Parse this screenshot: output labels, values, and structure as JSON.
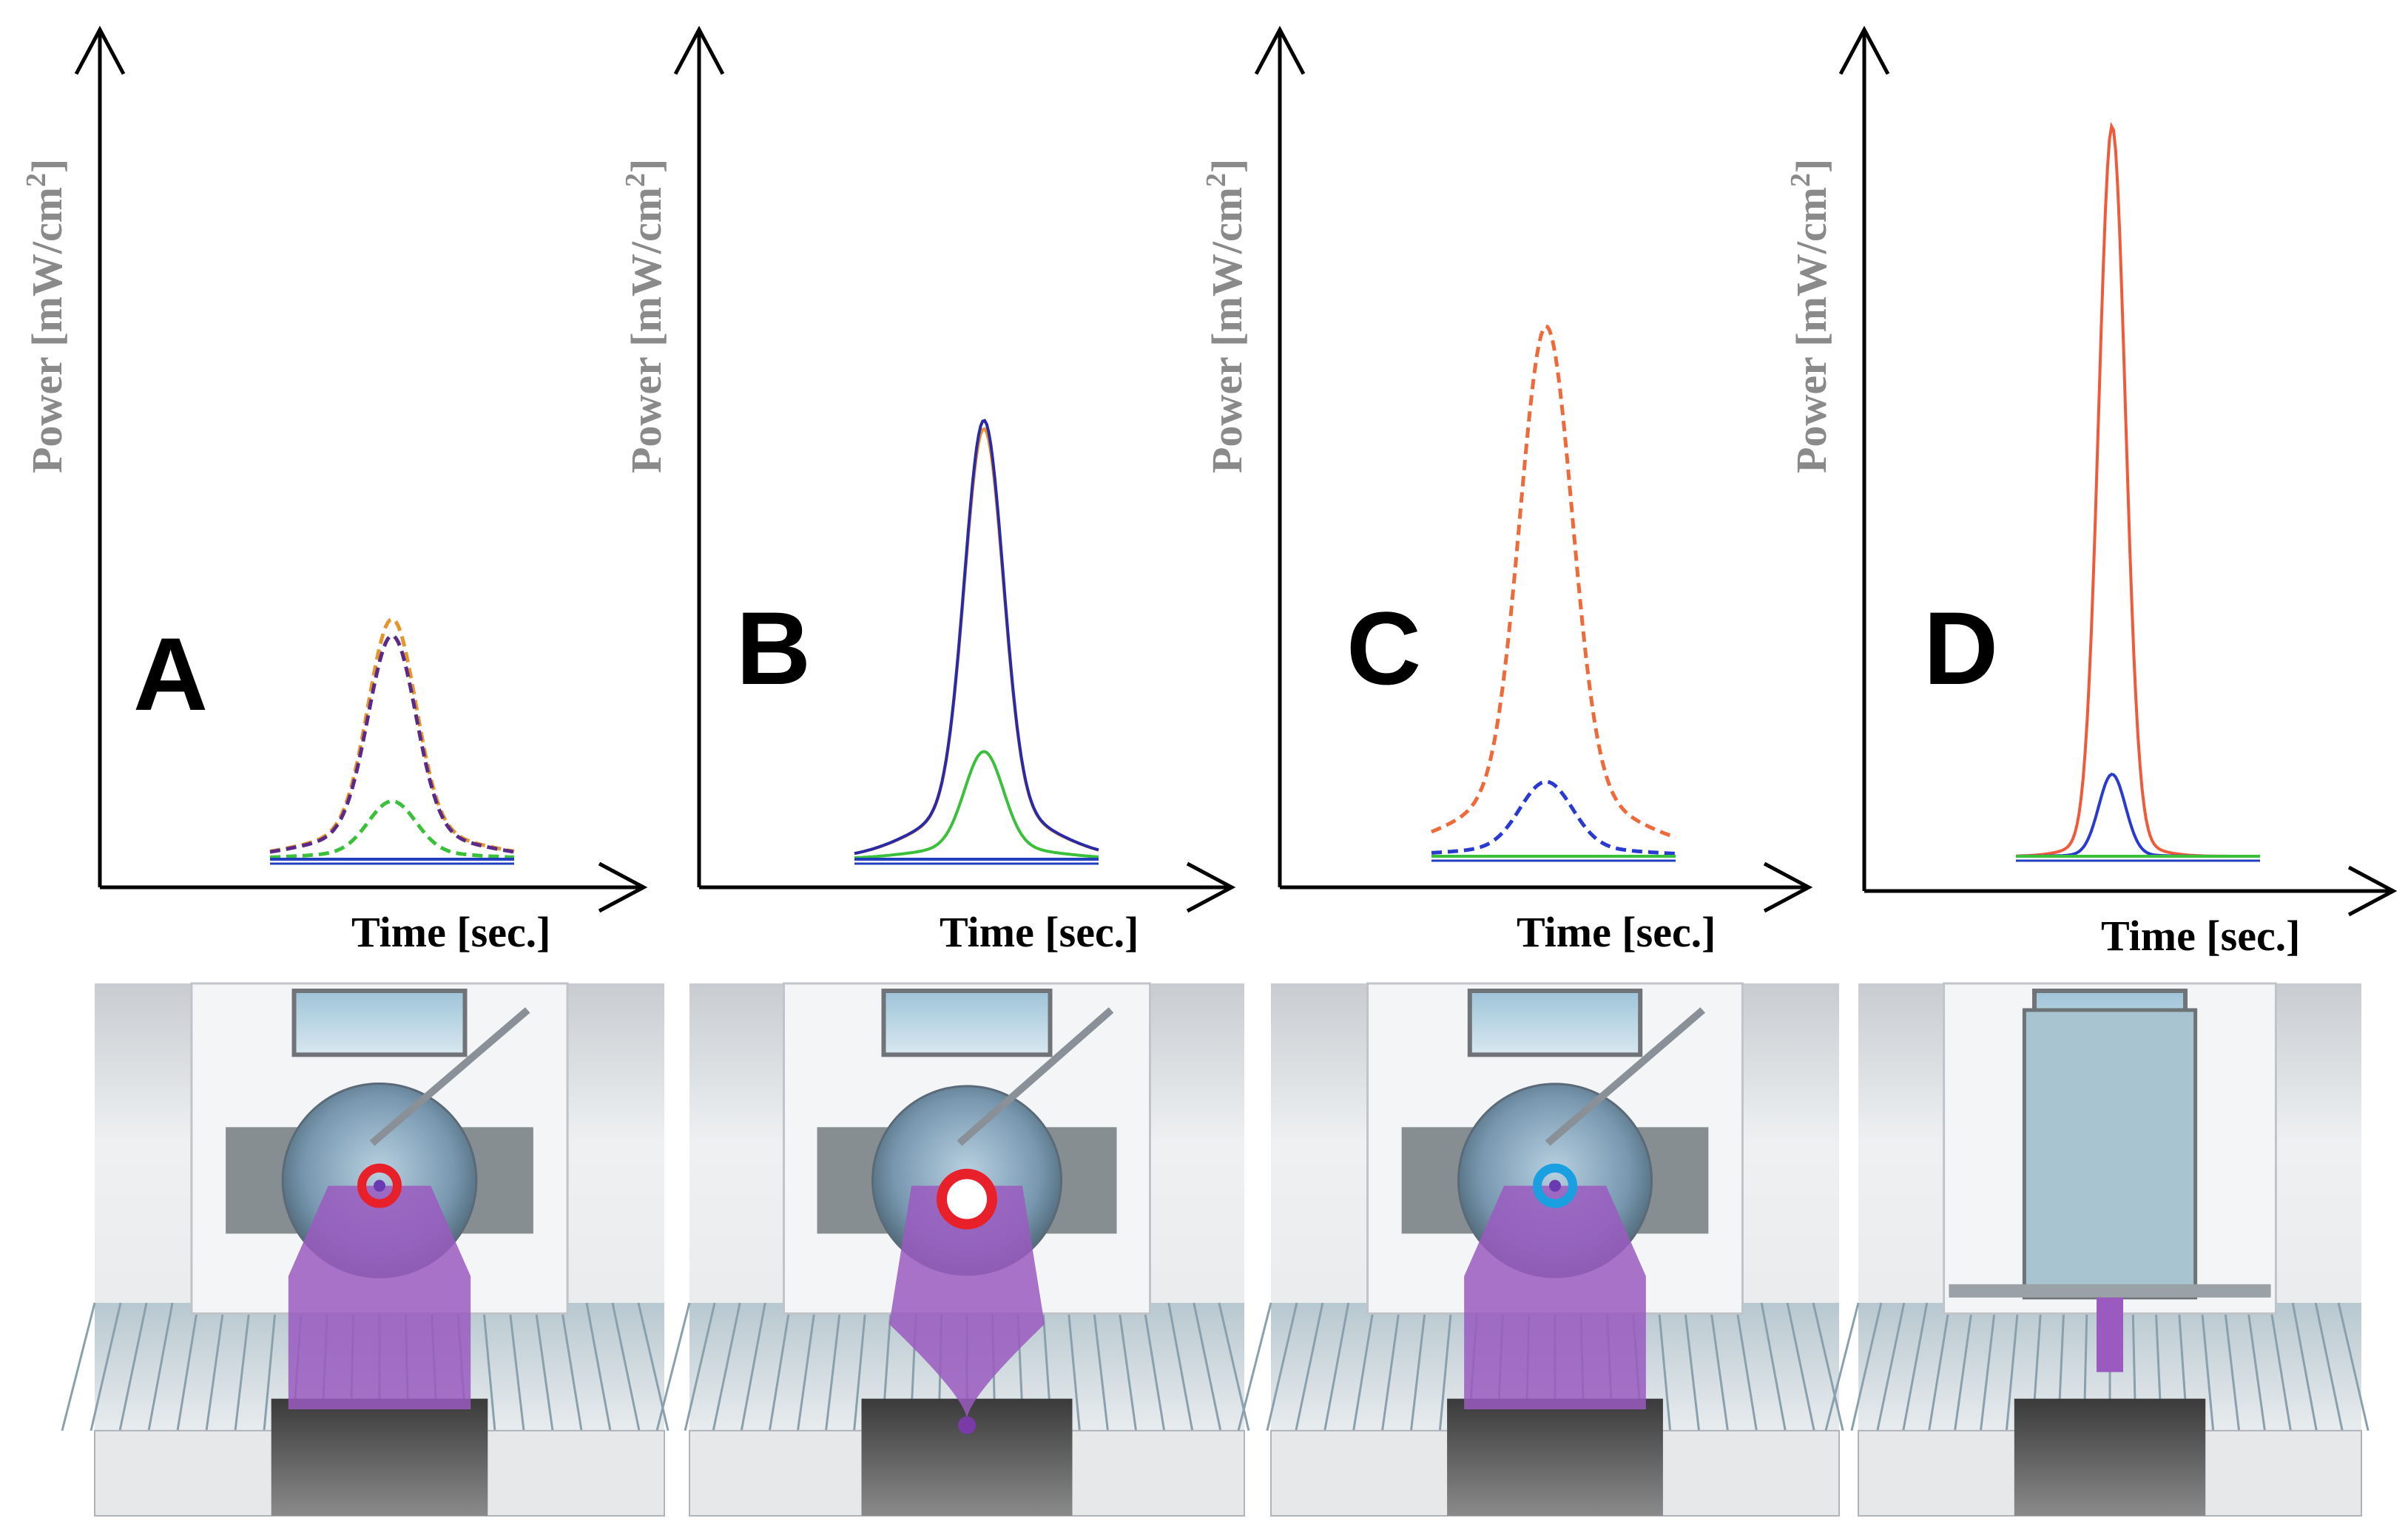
{
  "panels": [
    {
      "letter": "A",
      "ylabel": "Power [mW/cm",
      "ylabel_sup": "2",
      "ylabel_end": "]",
      "xlabel": "Time [sec.]",
      "marker": "red-ring",
      "beam": "wide",
      "peaks": [
        {
          "color": "#e6952b",
          "style": "dashed",
          "peak": 0.29
        },
        {
          "color": "#5a2a8a",
          "style": "dashed",
          "peak": 0.27
        },
        {
          "color": "#3ac03a",
          "style": "dashed",
          "peak": 0.07
        },
        {
          "color": "#2040c0",
          "style": "solid",
          "peak": 0.0
        }
      ]
    },
    {
      "letter": "B",
      "ylabel": "Power [mW/cm",
      "ylabel_sup": "2",
      "ylabel_end": "]",
      "xlabel": "Time [sec.]",
      "marker": "red-ring-white",
      "beam": "focused",
      "peaks": [
        {
          "color": "#e6952b",
          "style": "solid",
          "peak": 0.52
        },
        {
          "color": "#2a2aa8",
          "style": "solid",
          "peak": 0.53
        },
        {
          "color": "#3ac03a",
          "style": "solid",
          "peak": 0.13
        },
        {
          "color": "#2040c0",
          "style": "solid",
          "peak": 0.0
        }
      ]
    },
    {
      "letter": "C",
      "ylabel": "Power [mW/cm",
      "ylabel_sup": "2",
      "ylabel_end": "]",
      "xlabel": "Time [sec.]",
      "marker": "blue-ring",
      "beam": "wide",
      "peaks": [
        {
          "color": "#ef6a3a",
          "style": "dashed",
          "peak": 0.64
        },
        {
          "color": "#2a3ad0",
          "style": "dashed",
          "peak": 0.09
        },
        {
          "color": "#3ac03a",
          "style": "solid",
          "peak": 0.0
        }
      ]
    },
    {
      "letter": "D",
      "ylabel": "Power [mW/cm",
      "ylabel_sup": "2",
      "ylabel_end": "]",
      "xlabel": "Time [sec.]",
      "marker": "none",
      "beam": "narrow",
      "peaks": [
        {
          "color": "#ef5a3a",
          "style": "solid",
          "peak": 0.98
        },
        {
          "color": "#2a3ad0",
          "style": "solid",
          "peak": 0.11
        },
        {
          "color": "#3ac03a",
          "style": "solid",
          "peak": 0.0
        }
      ]
    }
  ],
  "colors": {
    "beam": "#9a5ac0",
    "ring_red": "#e8202a",
    "ring_blue": "#1aa0e0"
  }
}
